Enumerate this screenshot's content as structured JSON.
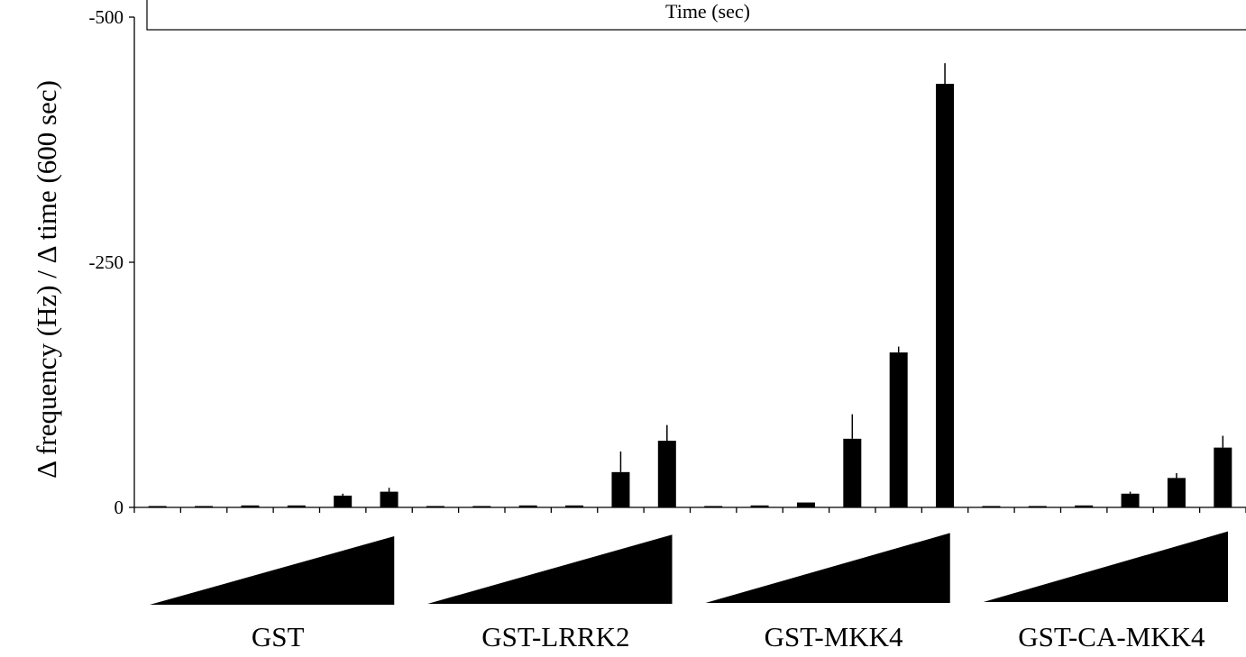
{
  "chart_data": {
    "type": "bar",
    "inset_label": "Time (sec)",
    "ylabel": "Δ frequency (Hz) / Δ time (600 sec)",
    "ylim": [
      0,
      -500
    ],
    "y_ticks": [
      0,
      -250,
      -500
    ],
    "y_tick_labels": [
      "0",
      "-250",
      "-500"
    ],
    "groups": [
      {
        "name": "GST",
        "values": [
          -1,
          -1,
          -2,
          -2,
          -12,
          -16
        ],
        "errors": [
          0,
          0,
          0,
          0,
          2,
          4
        ]
      },
      {
        "name": "GST-LRRK2",
        "values": [
          -1,
          -1,
          -2,
          -2,
          -36,
          -68
        ],
        "errors": [
          0,
          0,
          0,
          0,
          21,
          16
        ]
      },
      {
        "name": "GST-MKK4",
        "values": [
          -1,
          -2,
          -5,
          -70,
          -158,
          -432
        ],
        "errors": [
          0,
          0,
          0,
          25,
          6,
          21
        ]
      },
      {
        "name": "GST-CA-MKK4",
        "values": [
          -1,
          -1,
          -2,
          -14,
          -30,
          -61
        ],
        "errors": [
          0,
          0,
          0,
          2,
          5,
          12
        ]
      }
    ],
    "concentration_ramp": true,
    "bar_color": "#000000"
  }
}
